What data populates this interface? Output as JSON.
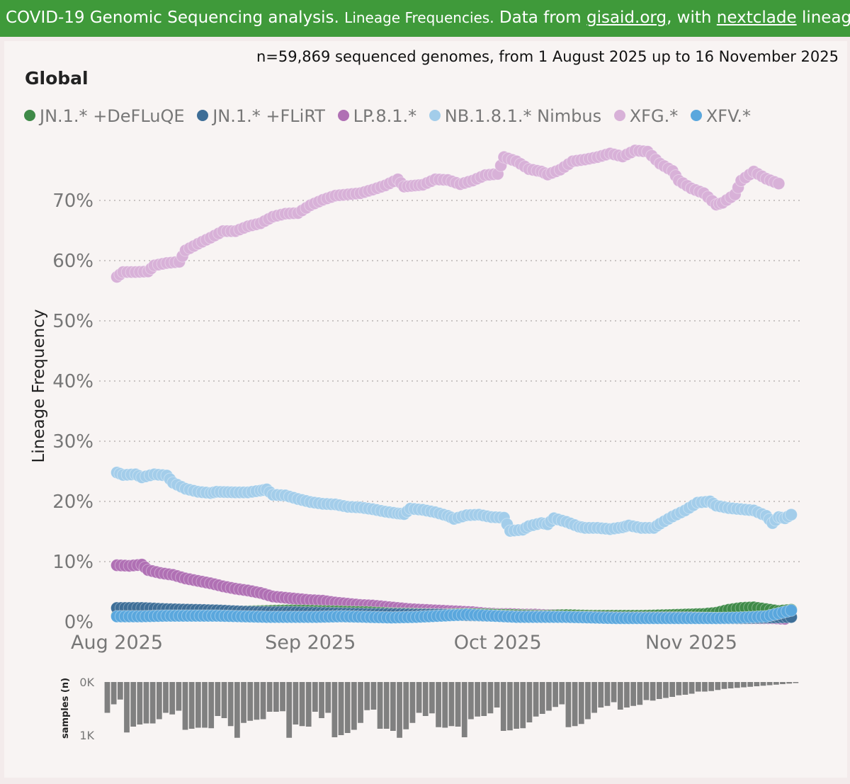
{
  "banner": {
    "part1": "COVID-19 Genomic Sequencing analysis. ",
    "part2": "Lineage Frequencies.",
    "part3": " Data from ",
    "link1": "gisaid.org",
    "part4": ", with ",
    "link2": "nextclade",
    "part5": " lineages. Source"
  },
  "subtitle": "n=59,869 sequenced genomes, from 1 August 2025 up to 16 November 2025",
  "region": "Global",
  "colors": {
    "banner": "#3f9a3a",
    "panel": "#f8f4f3",
    "bars": "#808080"
  },
  "legend": [
    {
      "label": "JN.1.* +DeFLuQE",
      "color": "#3f8a48"
    },
    {
      "label": "JN.1.* +FLiRT",
      "color": "#3e6e97"
    },
    {
      "label": "LP.8.1.*",
      "color": "#b070b4"
    },
    {
      "label": "NB.1.8.1.* Nimbus",
      "color": "#a3cdea"
    },
    {
      "label": "XFG.*",
      "color": "#d8b1d8"
    },
    {
      "label": "XFV.*",
      "color": "#5aa7dd"
    }
  ],
  "chart_data": {
    "type": "line",
    "title": "Lineage Frequencies",
    "ylabel": "Lineage Frequency",
    "xlabel": "",
    "ylim": [
      0,
      80
    ],
    "y_ticks": [
      "0%",
      "10%",
      "20%",
      "30%",
      "40%",
      "50%",
      "60%",
      "70%"
    ],
    "x_ticks": [
      {
        "label": "Aug 2025",
        "day": 0
      },
      {
        "label": "Sep 2025",
        "day": 31
      },
      {
        "label": "Oct 2025",
        "day": 61
      },
      {
        "label": "Nov 2025",
        "day": 92
      }
    ],
    "day_range": [
      0,
      108
    ],
    "series": [
      {
        "name": "XFG.*",
        "color": "#d8b1d8",
        "points": [
          [
            0,
            57.3
          ],
          [
            1,
            58.1
          ],
          [
            3,
            58.1
          ],
          [
            5,
            58.2
          ],
          [
            6,
            59.2
          ],
          [
            8,
            59.6
          ],
          [
            10,
            59.8
          ],
          [
            11,
            61.7
          ],
          [
            13,
            62.8
          ],
          [
            15,
            63.8
          ],
          [
            17,
            64.9
          ],
          [
            19,
            64.9
          ],
          [
            21,
            65.7
          ],
          [
            23,
            66.2
          ],
          [
            25,
            67.3
          ],
          [
            27,
            67.8
          ],
          [
            29,
            67.9
          ],
          [
            31,
            69.2
          ],
          [
            33,
            70.1
          ],
          [
            35,
            70.8
          ],
          [
            37,
            71.0
          ],
          [
            39,
            71.2
          ],
          [
            41,
            71.8
          ],
          [
            43,
            72.5
          ],
          [
            45,
            73.5
          ],
          [
            46,
            72.3
          ],
          [
            49,
            72.6
          ],
          [
            51,
            73.5
          ],
          [
            53,
            73.4
          ],
          [
            55,
            72.7
          ],
          [
            57,
            73.3
          ],
          [
            59,
            74.2
          ],
          [
            61,
            74.4
          ],
          [
            62,
            77.2
          ],
          [
            64,
            76.5
          ],
          [
            66,
            75.2
          ],
          [
            68,
            74.8
          ],
          [
            69,
            74.3
          ],
          [
            71,
            75.1
          ],
          [
            73,
            76.5
          ],
          [
            75,
            76.8
          ],
          [
            77,
            77.2
          ],
          [
            79,
            77.8
          ],
          [
            81,
            77.3
          ],
          [
            83,
            78.3
          ],
          [
            85,
            78.1
          ],
          [
            87,
            76.1
          ],
          [
            89,
            74.9
          ],
          [
            90,
            73.3
          ],
          [
            92,
            72.0
          ],
          [
            94,
            71.2
          ],
          [
            96,
            69.3
          ],
          [
            97,
            69.6
          ],
          [
            99,
            71.0
          ],
          [
            100,
            73.3
          ],
          [
            102,
            74.8
          ],
          [
            104,
            73.6
          ],
          [
            106,
            72.8
          ]
        ]
      },
      {
        "name": "NB.1.8.1.* Nimbus",
        "color": "#a3cdea",
        "points": [
          [
            0,
            24.8
          ],
          [
            1,
            24.4
          ],
          [
            3,
            24.5
          ],
          [
            4,
            24.0
          ],
          [
            6,
            24.5
          ],
          [
            8,
            24.3
          ],
          [
            9,
            23.1
          ],
          [
            11,
            22.1
          ],
          [
            13,
            21.6
          ],
          [
            15,
            21.4
          ],
          [
            16,
            21.6
          ],
          [
            19,
            21.5
          ],
          [
            21,
            21.5
          ],
          [
            23,
            21.8
          ],
          [
            24,
            22.0
          ],
          [
            25,
            21.1
          ],
          [
            27,
            21.0
          ],
          [
            29,
            20.4
          ],
          [
            31,
            19.9
          ],
          [
            33,
            19.6
          ],
          [
            35,
            19.5
          ],
          [
            37,
            19.1
          ],
          [
            39,
            19.0
          ],
          [
            41,
            18.7
          ],
          [
            43,
            18.3
          ],
          [
            45,
            18.0
          ],
          [
            46,
            17.9
          ],
          [
            47,
            18.8
          ],
          [
            49,
            18.6
          ],
          [
            51,
            18.2
          ],
          [
            53,
            17.6
          ],
          [
            54,
            17.1
          ],
          [
            56,
            17.7
          ],
          [
            58,
            17.8
          ],
          [
            60,
            17.4
          ],
          [
            62,
            17.3
          ],
          [
            63,
            15.1
          ],
          [
            65,
            15.3
          ],
          [
            66,
            15.9
          ],
          [
            68,
            16.4
          ],
          [
            69,
            16.2
          ],
          [
            70,
            17.2
          ],
          [
            72,
            16.6
          ],
          [
            74,
            15.8
          ],
          [
            75,
            15.6
          ],
          [
            77,
            15.6
          ],
          [
            79,
            15.4
          ],
          [
            81,
            15.7
          ],
          [
            82,
            16.0
          ],
          [
            84,
            15.6
          ],
          [
            86,
            15.6
          ],
          [
            87,
            16.3
          ],
          [
            89,
            17.5
          ],
          [
            91,
            18.5
          ],
          [
            93,
            19.8
          ],
          [
            95,
            20.0
          ],
          [
            96,
            19.3
          ],
          [
            98,
            18.9
          ],
          [
            100,
            18.7
          ],
          [
            102,
            18.5
          ],
          [
            104,
            17.6
          ],
          [
            105,
            16.4
          ],
          [
            106,
            17.4
          ],
          [
            107,
            17.2
          ],
          [
            108,
            17.8
          ]
        ]
      },
      {
        "name": "LP.8.1.*",
        "color": "#b070b4",
        "points": [
          [
            0,
            9.4
          ],
          [
            2,
            9.3
          ],
          [
            4,
            9.5
          ],
          [
            5,
            8.6
          ],
          [
            7,
            8.1
          ],
          [
            9,
            7.8
          ],
          [
            11,
            7.2
          ],
          [
            13,
            6.8
          ],
          [
            15,
            6.4
          ],
          [
            17,
            5.9
          ],
          [
            19,
            5.5
          ],
          [
            21,
            5.2
          ],
          [
            23,
            4.8
          ],
          [
            25,
            4.2
          ],
          [
            27,
            4.0
          ],
          [
            29,
            3.8
          ],
          [
            31,
            3.6
          ],
          [
            33,
            3.5
          ],
          [
            35,
            3.2
          ],
          [
            37,
            3.0
          ],
          [
            39,
            2.8
          ],
          [
            41,
            2.7
          ],
          [
            43,
            2.5
          ],
          [
            45,
            2.3
          ],
          [
            47,
            2.1
          ],
          [
            49,
            2.0
          ],
          [
            51,
            1.9
          ],
          [
            53,
            1.8
          ],
          [
            55,
            1.7
          ],
          [
            57,
            1.6
          ],
          [
            59,
            1.4
          ],
          [
            61,
            1.3
          ],
          [
            63,
            1.3
          ],
          [
            65,
            1.2
          ],
          [
            67,
            1.2
          ],
          [
            69,
            1.1
          ],
          [
            71,
            1.1
          ],
          [
            73,
            1.0
          ],
          [
            75,
            1.0
          ],
          [
            77,
            0.9
          ],
          [
            79,
            0.9
          ],
          [
            81,
            0.8
          ],
          [
            83,
            0.9
          ],
          [
            85,
            0.8
          ],
          [
            87,
            0.7
          ],
          [
            89,
            0.7
          ],
          [
            91,
            0.7
          ],
          [
            93,
            0.8
          ],
          [
            95,
            0.8
          ],
          [
            97,
            0.7
          ],
          [
            99,
            0.7
          ],
          [
            101,
            0.6
          ],
          [
            103,
            0.6
          ],
          [
            105,
            0.6
          ],
          [
            107,
            0.5
          ]
        ]
      },
      {
        "name": "JN.1.* +DeFLuQE",
        "color": "#3f8a48",
        "points": [
          [
            0,
            1.0
          ],
          [
            4,
            1.2
          ],
          [
            8,
            1.3
          ],
          [
            12,
            1.4
          ],
          [
            16,
            1.6
          ],
          [
            20,
            1.7
          ],
          [
            24,
            1.8
          ],
          [
            28,
            1.9
          ],
          [
            32,
            1.8
          ],
          [
            36,
            1.7
          ],
          [
            40,
            1.6
          ],
          [
            44,
            1.4
          ],
          [
            48,
            1.3
          ],
          [
            52,
            1.2
          ],
          [
            56,
            1.3
          ],
          [
            60,
            1.2
          ],
          [
            64,
            1.1
          ],
          [
            68,
            1.0
          ],
          [
            72,
            1.1
          ],
          [
            76,
            1.0
          ],
          [
            80,
            1.0
          ],
          [
            84,
            1.0
          ],
          [
            88,
            1.1
          ],
          [
            91,
            1.2
          ],
          [
            94,
            1.3
          ],
          [
            96,
            1.5
          ],
          [
            98,
            2.0
          ],
          [
            100,
            2.3
          ],
          [
            102,
            2.4
          ],
          [
            104,
            2.1
          ],
          [
            106,
            1.8
          ],
          [
            108,
            2.0
          ]
        ]
      },
      {
        "name": "JN.1.* +FLiRT",
        "color": "#3e6e97",
        "points": [
          [
            0,
            2.3
          ],
          [
            4,
            2.3
          ],
          [
            8,
            2.1
          ],
          [
            12,
            2.0
          ],
          [
            16,
            1.9
          ],
          [
            20,
            1.7
          ],
          [
            24,
            1.6
          ],
          [
            28,
            1.6
          ],
          [
            32,
            1.5
          ],
          [
            36,
            1.4
          ],
          [
            40,
            1.3
          ],
          [
            44,
            1.3
          ],
          [
            48,
            1.2
          ],
          [
            52,
            1.2
          ],
          [
            56,
            1.1
          ],
          [
            60,
            1.0
          ],
          [
            64,
            0.9
          ],
          [
            68,
            0.9
          ],
          [
            72,
            0.8
          ],
          [
            76,
            0.8
          ],
          [
            80,
            0.7
          ],
          [
            84,
            0.7
          ],
          [
            88,
            0.7
          ],
          [
            92,
            0.7
          ],
          [
            96,
            0.6
          ],
          [
            100,
            0.6
          ],
          [
            104,
            0.7
          ],
          [
            108,
            0.8
          ]
        ]
      },
      {
        "name": "XFV.*",
        "color": "#5aa7dd",
        "points": [
          [
            0,
            0.9
          ],
          [
            4,
            0.9
          ],
          [
            8,
            1.0
          ],
          [
            12,
            1.0
          ],
          [
            16,
            1.0
          ],
          [
            20,
            0.9
          ],
          [
            24,
            0.8
          ],
          [
            28,
            0.8
          ],
          [
            32,
            0.8
          ],
          [
            36,
            0.9
          ],
          [
            40,
            0.8
          ],
          [
            44,
            0.7
          ],
          [
            48,
            0.8
          ],
          [
            52,
            1.0
          ],
          [
            56,
            1.2
          ],
          [
            60,
            1.0
          ],
          [
            64,
            0.8
          ],
          [
            68,
            0.8
          ],
          [
            72,
            0.8
          ],
          [
            76,
            0.7
          ],
          [
            80,
            0.6
          ],
          [
            84,
            0.6
          ],
          [
            88,
            0.6
          ],
          [
            92,
            0.6
          ],
          [
            96,
            0.6
          ],
          [
            100,
            0.7
          ],
          [
            104,
            0.9
          ],
          [
            106,
            1.4
          ],
          [
            108,
            1.9
          ]
        ]
      }
    ],
    "samples": {
      "ylabel": "samples (n)",
      "ticks": [
        "0K",
        "1K"
      ],
      "ymax": 1000,
      "values": [
        580,
        420,
        330,
        950,
        840,
        800,
        780,
        780,
        700,
        580,
        610,
        540,
        900,
        880,
        860,
        860,
        870,
        640,
        680,
        830,
        1050,
        770,
        730,
        710,
        700,
        560,
        560,
        550,
        1050,
        800,
        830,
        840,
        560,
        680,
        580,
        1040,
        1000,
        960,
        900,
        770,
        530,
        520,
        880,
        880,
        920,
        1050,
        890,
        770,
        580,
        640,
        590,
        850,
        860,
        830,
        840,
        1040,
        700,
        650,
        640,
        590,
        480,
        920,
        910,
        880,
        870,
        760,
        650,
        600,
        540,
        470,
        420,
        850,
        830,
        790,
        700,
        580,
        480,
        450,
        380,
        520,
        480,
        450,
        430,
        340,
        350,
        320,
        300,
        280,
        250,
        240,
        220,
        180,
        180,
        170,
        150,
        130,
        120,
        110,
        100,
        90,
        80,
        70,
        60,
        50,
        40,
        30,
        20
      ]
    }
  }
}
